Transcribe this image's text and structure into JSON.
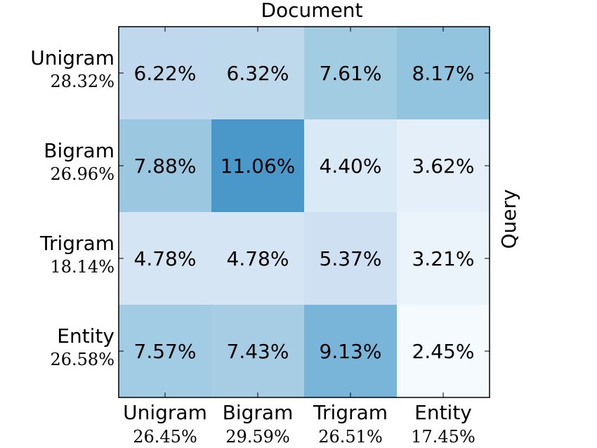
{
  "chart_data": {
    "type": "heatmap",
    "title": "Document",
    "xlabel": "Document",
    "ylabel": "Query",
    "columns": [
      {
        "label": "Unigram",
        "share": "26.45%"
      },
      {
        "label": "Bigram",
        "share": "29.59%"
      },
      {
        "label": "Trigram",
        "share": "26.51%"
      },
      {
        "label": "Entity",
        "share": "17.45%"
      }
    ],
    "rows": [
      {
        "label": "Unigram",
        "share": "28.32%"
      },
      {
        "label": "Bigram",
        "share": "26.96%"
      },
      {
        "label": "Trigram",
        "share": "18.14%"
      },
      {
        "label": "Entity",
        "share": "26.58%"
      }
    ],
    "values": [
      [
        6.22,
        6.32,
        7.61,
        8.17
      ],
      [
        7.88,
        11.06,
        4.4,
        3.62
      ],
      [
        4.78,
        4.78,
        5.37,
        3.21
      ],
      [
        7.57,
        7.43,
        9.13,
        2.45
      ]
    ],
    "value_suffix": "%",
    "colormap": "Blues",
    "color_range": [
      2.3,
      16.9
    ]
  }
}
